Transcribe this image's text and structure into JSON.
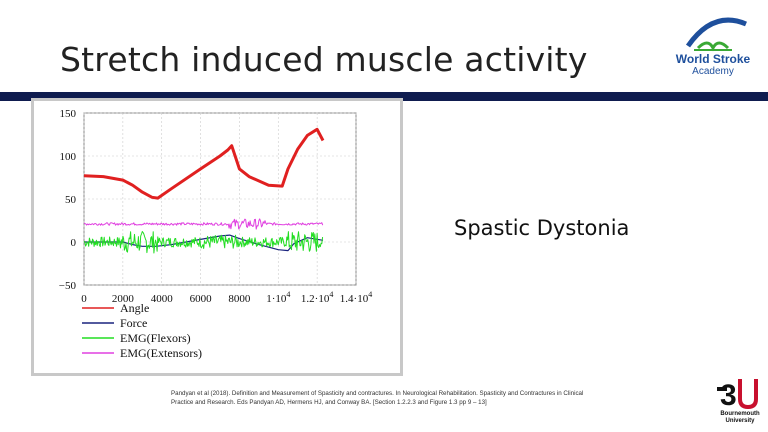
{
  "slide": {
    "title": "Stretch induced muscle activity",
    "side_label": "Spastic Dystonia",
    "citation": "Pandyan et al (2018). Definition and Measurement of Spasticity and contractures. In Neurological Rehabilitation. Spasticity and Contractures in Clinical Practice and Research. Eds Pandyan AD, Hermens HJ, and Conway BA. [Section 1.2.2.3 and Figure 1.3 pp 9 – 13]"
  },
  "logos": {
    "wsa_line1": "World Stroke",
    "wsa_line2": "Academy",
    "bu_line1": "Bournemouth",
    "bu_line2": "University",
    "wsa_color": "#1e4f9c",
    "bu_color": "#c8102e"
  },
  "colors": {
    "title_bar": "#0f1c4f"
  },
  "chart_data": {
    "type": "line",
    "xlim": [
      0,
      14000
    ],
    "ylim": [
      -50,
      150
    ],
    "xticks": [
      0,
      2000,
      4000,
      6000,
      8000,
      10000,
      12000,
      14000
    ],
    "xtick_labels": [
      "0",
      "2000",
      "4000",
      "6000",
      "8000",
      "1·10",
      "1.2·10",
      "1.4·10"
    ],
    "xtick_exponents": [
      "",
      "",
      "",
      "",
      "",
      "4",
      "4",
      "4"
    ],
    "yticks": [
      -50,
      0,
      50,
      100,
      150
    ],
    "ytick_labels": [
      "−50",
      "0",
      "50",
      "100",
      "150"
    ],
    "legend_position": "bottom-left",
    "series": [
      {
        "name": "Angle",
        "color": "#e02020",
        "x": [
          0,
          1000,
          2000,
          2500,
          3000,
          3500,
          3800,
          4500,
          6000,
          7000,
          7400,
          7600,
          8000,
          8500,
          9500,
          10200,
          10500,
          11000,
          11500,
          12000,
          12300
        ],
        "y": [
          77,
          76,
          72,
          66,
          58,
          52,
          51,
          62,
          85,
          100,
          107,
          112,
          85,
          76,
          66,
          65,
          85,
          108,
          124,
          131,
          118
        ]
      },
      {
        "name": "Force",
        "color": "#1a237e",
        "x": [
          0,
          2000,
          2500,
          3000,
          3700,
          4500,
          6000,
          7000,
          7500,
          8000,
          9000,
          10000,
          10500,
          10800,
          11500,
          12300
        ],
        "y": [
          0,
          0,
          -3,
          -5,
          -5,
          -3,
          3,
          7,
          8,
          4,
          -3,
          -9,
          -10,
          -2,
          5,
          2
        ]
      },
      {
        "name": "EMG(Flexors)",
        "color": "#22dd22",
        "x": [
          0,
          12300
        ],
        "y": [
          0,
          0
        ]
      },
      {
        "name": "EMG(Extensors)",
        "color": "#e040e0",
        "x": [
          0,
          12300
        ],
        "y": [
          21,
          21
        ]
      }
    ]
  }
}
